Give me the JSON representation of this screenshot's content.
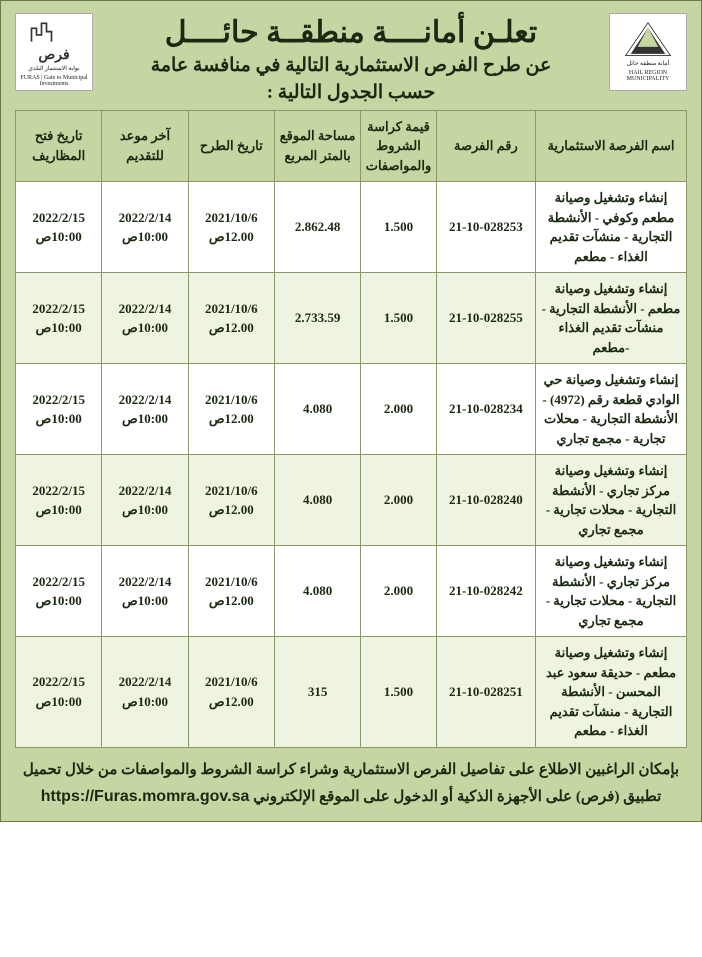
{
  "colors": {
    "page_bg": "#c5d6a3",
    "border": "#889966",
    "text": "#1a2a12",
    "row_alt": "#eef3e2",
    "row_base": "#ffffff"
  },
  "header": {
    "main_title": "تعلـن أمانــــة منطقــة حائــــل",
    "sub_title": "عن طرح الفرص الاستثمارية التالية في منافسة عامة",
    "sub_title2": "حسب الجدول التالية :",
    "logo_right_caption_ar": "أمانة منطقة حائل",
    "logo_right_caption_en": "HAIL REGION MUNICIPALITY",
    "logo_left_brand": "فرص",
    "logo_left_caption_ar": "بوابة الاستثمار البلدي",
    "logo_left_caption_en": "FURAS | Gate to Municipal Investments"
  },
  "table": {
    "columns": {
      "name": "اسم الفرصة الاستثمارية",
      "number": "رقم الفرصة",
      "doc_price": "قيمة كراسة الشروط والمواصفات",
      "area": "مساحة الموقع بالمتر المربع",
      "offer_date": "تاريخ الطرح",
      "deadline": "آخر موعد للتقديم",
      "open_date": "تاريخ فتح المظاريف"
    },
    "rows": [
      {
        "name": "إنشاء وتشغيل وصيانة مطعم وكوفي - الأنشطة التجارية - منشآت تقديم الغذاء - مطعم",
        "number": "21-10-028253",
        "doc_price": "1.500",
        "area": "2.862.48",
        "offer_date": "2021/10/6",
        "offer_time": "12.00ص",
        "deadline_date": "2022/2/14",
        "deadline_time": "10:00ص",
        "open_date": "2022/2/15",
        "open_time": "10:00ص"
      },
      {
        "name": "إنشاء وتشغيل وصيانة مطعم - الأنشطة التجارية - منشآت تقديم الغذاء -مطعم",
        "number": "21-10-028255",
        "doc_price": "1.500",
        "area": "2.733.59",
        "offer_date": "2021/10/6",
        "offer_time": "12.00ص",
        "deadline_date": "2022/2/14",
        "deadline_time": "10:00ص",
        "open_date": "2022/2/15",
        "open_time": "10:00ص"
      },
      {
        "name": "إنشاء وتشغيل وصيانة حي الوادي قطعة رقم (4972) - الأنشطة التجارية - محلات تجارية - مجمع تجاري",
        "number": "21-10-028234",
        "doc_price": "2.000",
        "area": "4.080",
        "offer_date": "2021/10/6",
        "offer_time": "12.00ص",
        "deadline_date": "2022/2/14",
        "deadline_time": "10:00ص",
        "open_date": "2022/2/15",
        "open_time": "10:00ص"
      },
      {
        "name": "إنشاء وتشغيل وصيانة مركز تجاري - الأنشطة التجارية - محلات تجارية - مجمع تجاري",
        "number": "21-10-028240",
        "doc_price": "2.000",
        "area": "4.080",
        "offer_date": "2021/10/6",
        "offer_time": "12.00ص",
        "deadline_date": "2022/2/14",
        "deadline_time": "10:00ص",
        "open_date": "2022/2/15",
        "open_time": "10:00ص"
      },
      {
        "name": "إنشاء وتشغيل وصيانة مركز تجاري - الأنشطة التجارية - محلات تجارية - مجمع تجاري",
        "number": "21-10-028242",
        "doc_price": "2.000",
        "area": "4.080",
        "offer_date": "2021/10/6",
        "offer_time": "12.00ص",
        "deadline_date": "2022/2/14",
        "deadline_time": "10:00ص",
        "open_date": "2022/2/15",
        "open_time": "10:00ص"
      },
      {
        "name": "إنشاء وتشغيل وصيانة مطعم - حديقة سعود عبد المحسن - الأنشطة التجارية - منشآت تقديم الغذاء - مطعم",
        "number": "21-10-028251",
        "doc_price": "1.500",
        "area": "315",
        "offer_date": "2021/10/6",
        "offer_time": "12.00ص",
        "deadline_date": "2022/2/14",
        "deadline_time": "10:00ص",
        "open_date": "2022/2/15",
        "open_time": "10:00ص"
      }
    ]
  },
  "footer": {
    "line1": "بإمكان الراغبين الاطلاع على تفاصيل الفرص الاستثمارية وشراء كراسة الشروط والمواصفات من خلال تحميل",
    "line2_prefix": "تطبيق (فرص) على الأجهزة الذكية أو الدخول على الموقع الإلكتروني ",
    "url": "https://Furas.momra.gov.sa"
  }
}
